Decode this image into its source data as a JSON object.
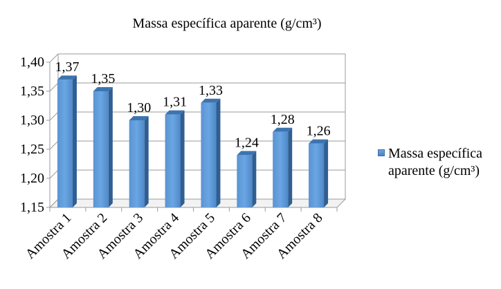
{
  "chart_data": {
    "type": "bar",
    "title": "Massa específica aparente (g/cm³)",
    "categories": [
      "Amostra 1",
      "Amostra 2",
      "Amostra 3",
      "Amostra 4",
      "Amostra 5",
      "Amostra 6",
      "Amostra 7",
      "Amostra 8"
    ],
    "series": [
      {
        "name": "Massa específica aparente (g/cm³)",
        "values": [
          1.37,
          1.35,
          1.3,
          1.31,
          1.33,
          1.24,
          1.28,
          1.26
        ],
        "labels": [
          "1,37",
          "1,35",
          "1,30",
          "1,31",
          "1,33",
          "1,24",
          "1,28",
          "1,26"
        ]
      }
    ],
    "ylim": [
      1.15,
      1.4
    ],
    "yticks": [
      "1,15",
      "1,20",
      "1,25",
      "1,30",
      "1,35",
      "1,40"
    ],
    "xlabel": "",
    "ylabel": "",
    "grid": true,
    "legend_position": "right",
    "bar_color": "#5b9bd5"
  }
}
